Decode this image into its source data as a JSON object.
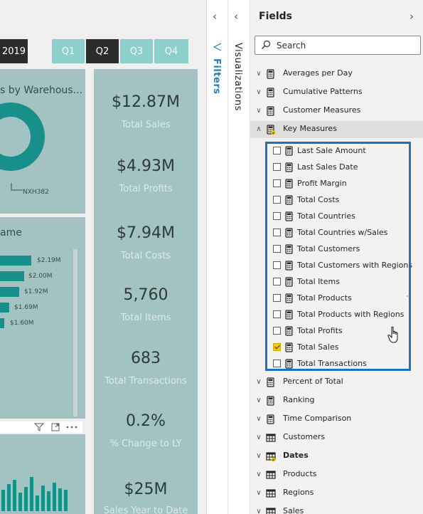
{
  "slicer": {
    "year": "2019",
    "quarters": [
      "Q1",
      "Q2",
      "Q3",
      "Q4"
    ]
  },
  "donut_card": {
    "title": "s by Warehous...",
    "label": "NXH382"
  },
  "bar_card": {
    "title": "ame",
    "labels": [
      "$2.19M",
      "$2.00M",
      "$1.92M",
      "$1.69M",
      "$1.60M"
    ]
  },
  "kpis": [
    {
      "value": "$12.87M",
      "label": "Total Sales"
    },
    {
      "value": "$4.93M",
      "label": "Total Profits"
    },
    {
      "value": "$7.94M",
      "label": "Total Costs"
    },
    {
      "value": "5,760",
      "label": "Total Items"
    },
    {
      "value": "683",
      "label": "Total Transactions"
    },
    {
      "value": "0.2%",
      "label": "% Change to LY"
    },
    {
      "value": "$25M",
      "label": "Sales Year to Date"
    }
  ],
  "filters": {
    "label": "Filters"
  },
  "visualizations": {
    "label": "Visualizations"
  },
  "fields": {
    "title": "Fields",
    "search_placeholder": "Search",
    "tables_top": [
      {
        "name": "Averages per Day"
      },
      {
        "name": "Cumulative Patterns"
      },
      {
        "name": "Customer Measures"
      },
      {
        "name": "Key Measures"
      }
    ],
    "key_measures": [
      {
        "name": "Last Sale Amount",
        "checked": false
      },
      {
        "name": "Last Sales Date",
        "checked": false
      },
      {
        "name": "Profit Margin",
        "checked": false
      },
      {
        "name": "Total Costs",
        "checked": false
      },
      {
        "name": "Total Countries",
        "checked": false
      },
      {
        "name": "Total Countries w/Sales",
        "checked": false
      },
      {
        "name": "Total Customers",
        "checked": false
      },
      {
        "name": "Total Customers with Regions",
        "checked": false
      },
      {
        "name": "Total Items",
        "checked": false
      },
      {
        "name": "Total Products",
        "checked": false
      },
      {
        "name": "Total Products with Regions",
        "checked": false
      },
      {
        "name": "Total Profits",
        "checked": false
      },
      {
        "name": "Total Sales",
        "checked": true
      },
      {
        "name": "Total Transactions",
        "checked": false
      }
    ],
    "tables_bottom": [
      {
        "name": "Percent of Total"
      },
      {
        "name": "Ranking"
      },
      {
        "name": "Time Comparison"
      },
      {
        "name": "Customers"
      },
      {
        "name": "Dates"
      },
      {
        "name": "Products"
      },
      {
        "name": "Regions"
      },
      {
        "name": "Sales"
      }
    ]
  },
  "colors": {
    "accent_teal": "#178f8a",
    "panel": "#a3c2c2",
    "highlight": "#1d70c4",
    "check": "#f2c811"
  }
}
